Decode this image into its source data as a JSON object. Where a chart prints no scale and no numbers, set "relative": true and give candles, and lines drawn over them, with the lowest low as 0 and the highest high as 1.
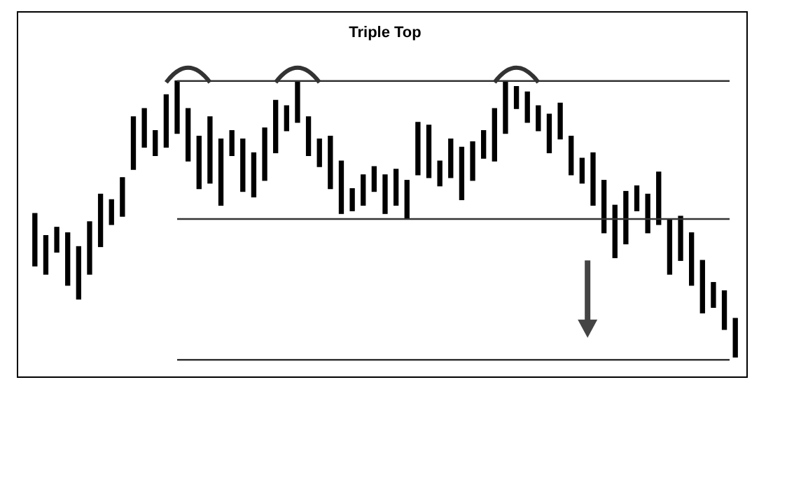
{
  "chart_data": {
    "type": "candlestick",
    "title": "Triple Top",
    "relative": true,
    "color": "#000000",
    "categories": [
      null,
      null,
      null,
      null,
      null,
      null,
      null,
      null,
      null,
      null,
      null,
      null,
      null,
      null,
      null,
      null,
      null,
      null,
      null,
      null,
      null,
      null,
      null,
      null,
      null,
      null,
      null,
      null,
      null,
      null,
      null,
      null,
      null,
      null,
      null,
      null,
      null,
      null,
      null,
      null,
      null,
      null,
      null,
      null,
      null,
      null,
      null,
      null,
      null,
      null,
      null,
      null,
      null,
      null,
      null,
      null,
      null,
      null,
      null,
      null,
      null,
      null,
      null,
      null,
      null
    ],
    "ohlc": [
      [
        0.33,
        0.52,
        0.33,
        0.52
      ],
      [
        0.3,
        0.44,
        0.3,
        0.44
      ],
      [
        0.38,
        0.47,
        0.38,
        0.47
      ],
      [
        0.26,
        0.45,
        0.26,
        0.45
      ],
      [
        0.21,
        0.4,
        0.21,
        0.4
      ],
      [
        0.3,
        0.49,
        0.3,
        0.49
      ],
      [
        0.4,
        0.59,
        0.4,
        0.59
      ],
      [
        0.48,
        0.57,
        0.48,
        0.57
      ],
      [
        0.51,
        0.65,
        0.51,
        0.65
      ],
      [
        0.68,
        0.87,
        0.68,
        0.87
      ],
      [
        0.76,
        0.9,
        0.76,
        0.9
      ],
      [
        0.73,
        0.82,
        0.73,
        0.82
      ],
      [
        0.76,
        0.95,
        0.76,
        0.95
      ],
      [
        0.81,
        1.0,
        0.81,
        1.0
      ],
      [
        0.71,
        0.9,
        0.71,
        0.9
      ],
      [
        0.61,
        0.8,
        0.61,
        0.8
      ],
      [
        0.63,
        0.87,
        0.63,
        0.87
      ],
      [
        0.55,
        0.79,
        0.55,
        0.79
      ],
      [
        0.73,
        0.82,
        0.73,
        0.82
      ],
      [
        0.6,
        0.79,
        0.6,
        0.79
      ],
      [
        0.58,
        0.74,
        0.58,
        0.74
      ],
      [
        0.64,
        0.83,
        0.64,
        0.83
      ],
      [
        0.74,
        0.93,
        0.74,
        0.93
      ],
      [
        0.82,
        0.91,
        0.82,
        0.91
      ],
      [
        0.85,
        1.0,
        0.85,
        1.0
      ],
      [
        0.73,
        0.87,
        0.73,
        0.87
      ],
      [
        0.69,
        0.79,
        0.69,
        0.79
      ],
      [
        0.61,
        0.8,
        0.61,
        0.8
      ],
      [
        0.52,
        0.71,
        0.52,
        0.71
      ],
      [
        0.53,
        0.61,
        0.53,
        0.61
      ],
      [
        0.55,
        0.66,
        0.55,
        0.66
      ],
      [
        0.6,
        0.69,
        0.6,
        0.69
      ],
      [
        0.52,
        0.66,
        0.52,
        0.66
      ],
      [
        0.55,
        0.68,
        0.55,
        0.68
      ],
      [
        0.5,
        0.64,
        0.5,
        0.64
      ],
      [
        0.66,
        0.85,
        0.66,
        0.85
      ],
      [
        0.65,
        0.84,
        0.65,
        0.84
      ],
      [
        0.62,
        0.71,
        0.62,
        0.71
      ],
      [
        0.65,
        0.79,
        0.65,
        0.79
      ],
      [
        0.57,
        0.76,
        0.57,
        0.76
      ],
      [
        0.64,
        0.78,
        0.64,
        0.78
      ],
      [
        0.72,
        0.82,
        0.72,
        0.82
      ],
      [
        0.71,
        0.9,
        0.71,
        0.9
      ],
      [
        0.81,
        1.0,
        0.81,
        1.0
      ],
      [
        0.9,
        0.98,
        0.9,
        0.98
      ],
      [
        0.85,
        0.96,
        0.85,
        0.96
      ],
      [
        0.82,
        0.91,
        0.82,
        0.91
      ],
      [
        0.74,
        0.88,
        0.74,
        0.88
      ],
      [
        0.79,
        0.92,
        0.79,
        0.92
      ],
      [
        0.66,
        0.8,
        0.66,
        0.8
      ],
      [
        0.63,
        0.72,
        0.63,
        0.72
      ],
      [
        0.55,
        0.74,
        0.55,
        0.74
      ],
      [
        0.45,
        0.64,
        0.45,
        0.64
      ],
      [
        0.36,
        0.55,
        0.36,
        0.55
      ],
      [
        0.41,
        0.6,
        0.41,
        0.6
      ],
      [
        0.53,
        0.62,
        0.53,
        0.62
      ],
      [
        0.45,
        0.59,
        0.45,
        0.59
      ],
      [
        0.48,
        0.67,
        0.48,
        0.67
      ],
      [
        0.3,
        0.5,
        0.3,
        0.5
      ],
      [
        0.35,
        0.51,
        0.35,
        0.51
      ],
      [
        0.26,
        0.45,
        0.26,
        0.45
      ],
      [
        0.16,
        0.35,
        0.16,
        0.35
      ],
      [
        0.18,
        0.27,
        0.18,
        0.27
      ],
      [
        0.1,
        0.24,
        0.1,
        0.24
      ],
      [
        0,
        0.14,
        0,
        0.14
      ]
    ],
    "ref_lines": [
      {
        "axis": "y",
        "value": 1.0,
        "color": "#333333"
      },
      {
        "axis": "y",
        "value": 0.5,
        "color": "#333333"
      },
      {
        "axis": "y",
        "value": -0.01,
        "color": "#333333"
      }
    ]
  }
}
